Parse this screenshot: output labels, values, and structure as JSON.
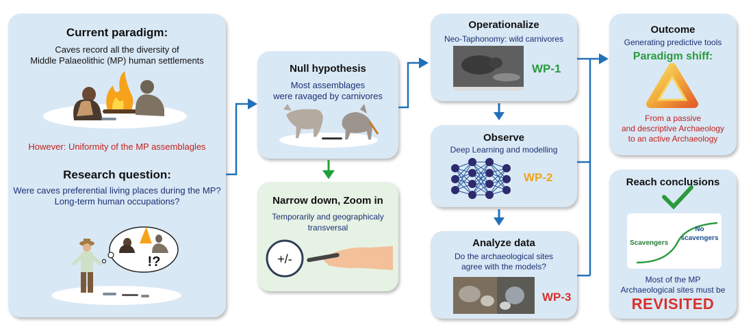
{
  "box1": {
    "title": "Current paradigm:",
    "line1": "Caves record all the diversity of",
    "line2": "Middle Palaeolithic (MP) human settlements",
    "however": "However: Uniformity of the MP assemblagles",
    "rq_title": "Research question:",
    "rq1": "Were caves preferential living places during the MP?",
    "rq2": "Long-term human occupations?",
    "bubble": "!?"
  },
  "null": {
    "title": "Null hypothesis",
    "line1": "Most assemblages",
    "line2": "were ravaged by carnivores"
  },
  "narrow": {
    "title": "Narrow down, Zoom in",
    "line1": "Temporarily and geographicaly",
    "line2": "transversal",
    "lens": "+/-"
  },
  "operationalize": {
    "title": "Operationalize",
    "sub": "Neo-Taphonomy: wild carnivores",
    "wp": "WP-1"
  },
  "observe": {
    "title": "Observe",
    "sub": "Deep Learning and modelling",
    "wp": "WP-2"
  },
  "analyze": {
    "title": "Analyze data",
    "line1": "Do the archaeological sites",
    "line2": "agree with the models?",
    "wp": "WP-3"
  },
  "outcome": {
    "title": "Outcome",
    "sub": "Generating predictive tools",
    "shift": "Paradigm shiff:",
    "l1": "From a passive",
    "l2": "and descriptive Archaeology",
    "l3": "to an active Archaeology"
  },
  "reach": {
    "title": "Reach conclusions",
    "curve_left": "Scavengers",
    "curve_right1": "No",
    "curve_right2": "scavengers",
    "l1": "Most of the MP",
    "l2": "Archaeological sites must be",
    "revisited": "REVISITED"
  },
  "colors": {
    "box": "#d9e8f5",
    "arrow_blue": "#2170b8",
    "arrow_green": "#22a03a",
    "navy": "#1c2f73",
    "red": "#c0201c",
    "wp1": "#2b9a3e",
    "wp2": "#f0a41a",
    "wp3": "#d8312b"
  }
}
